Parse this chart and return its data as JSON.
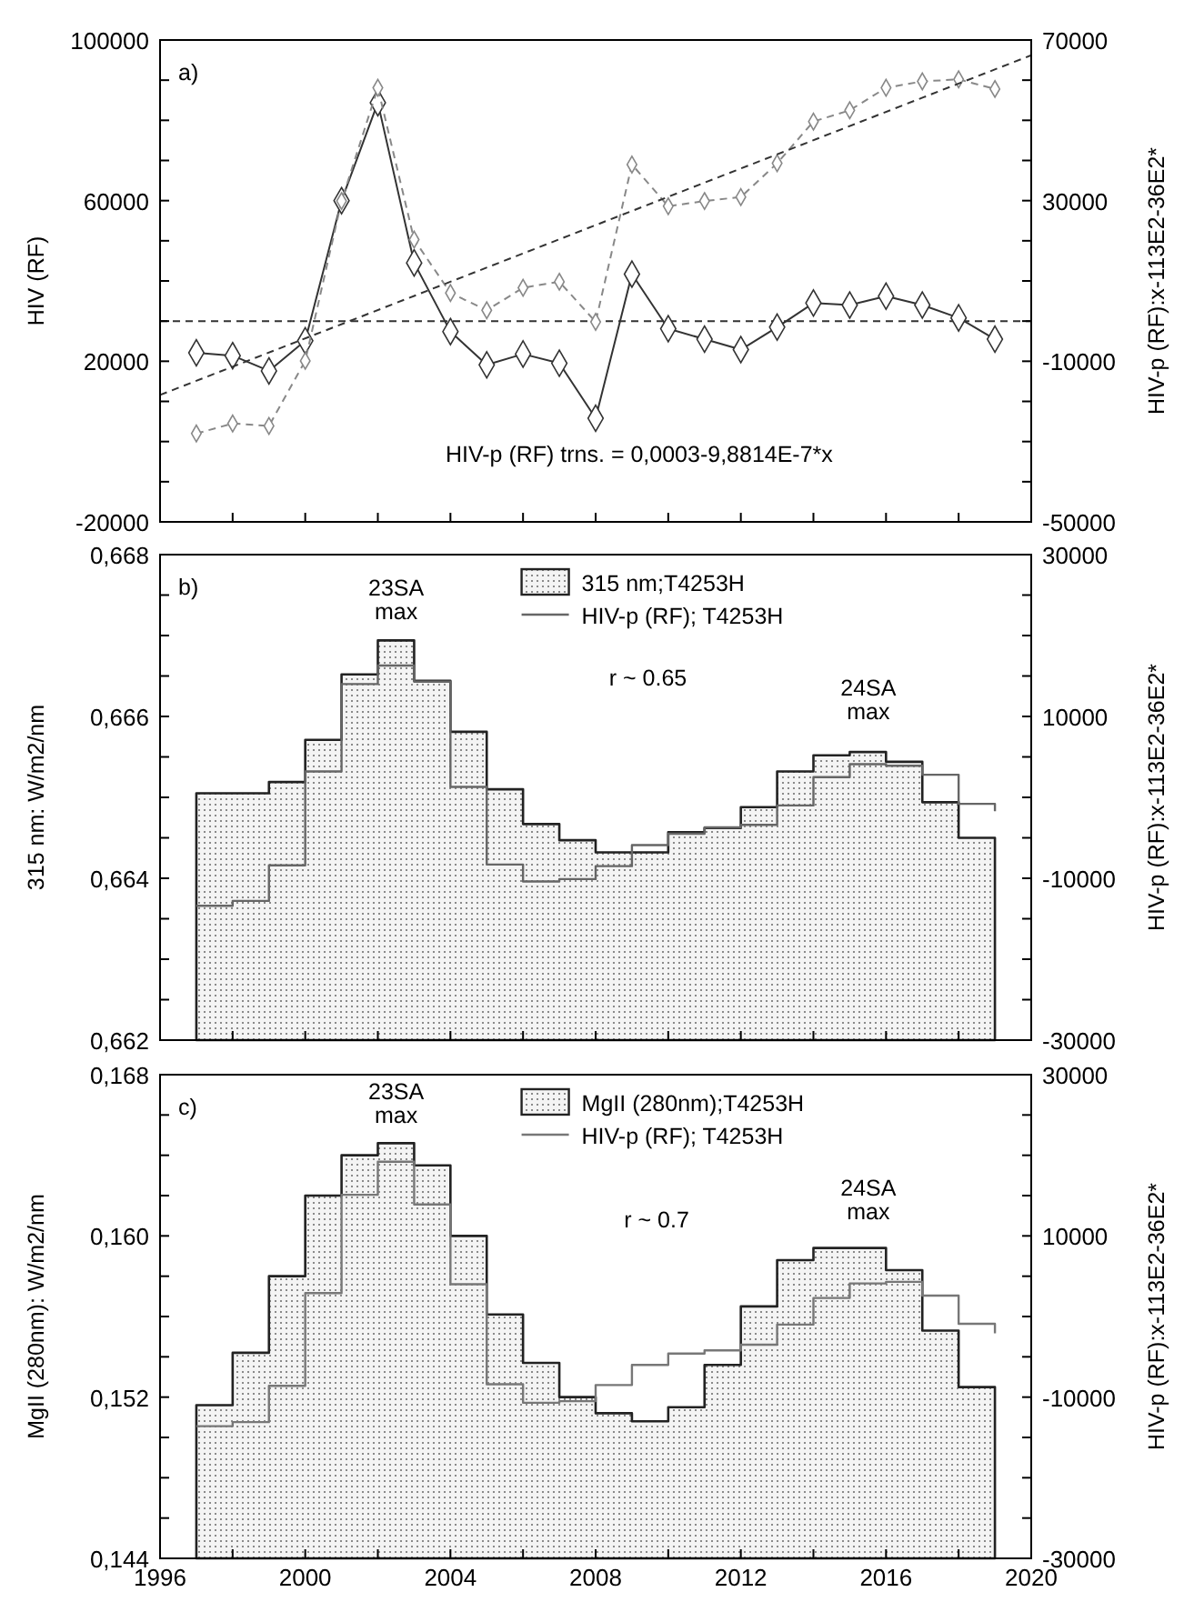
{
  "chart_data": [
    {
      "type": "line",
      "title": "a)",
      "ylabel": "HIV (RF)",
      "y2label": "HIV-p (RF):x-113E2-36E2*",
      "xlim": [
        1996,
        2020
      ],
      "xticks": [
        {
          "value": 1996,
          "label": null
        },
        {
          "value": 1998,
          "label": null
        },
        {
          "value": 2000,
          "label": null
        },
        {
          "value": 2002,
          "label": null
        },
        {
          "value": 2004,
          "label": null
        },
        {
          "value": 2006,
          "label": null
        },
        {
          "value": 2008,
          "label": null
        },
        {
          "value": 2010,
          "label": null
        },
        {
          "value": 2012,
          "label": null
        },
        {
          "value": 2014,
          "label": null
        },
        {
          "value": 2016,
          "label": null
        },
        {
          "value": 2018,
          "label": null
        },
        {
          "value": 2020,
          "label": null
        }
      ],
      "ylim": [
        -20000,
        100000
      ],
      "yticks": [
        -20000,
        {
          "value": -10000,
          "label": null
        },
        {
          "value": 0,
          "label": null
        },
        {
          "value": 10000,
          "label": null
        },
        20000,
        {
          "value": 30000,
          "label": null
        },
        {
          "value": 40000,
          "label": null
        },
        {
          "value": 50000,
          "label": null
        },
        60000,
        {
          "value": 70000,
          "label": null
        },
        {
          "value": 80000,
          "label": null
        },
        {
          "value": 90000,
          "label": null
        },
        100000
      ],
      "y2lim": [
        -50000,
        70000
      ],
      "y2ticks": [
        -50000,
        {
          "value": -40000,
          "label": null
        },
        {
          "value": -30000,
          "label": null
        },
        {
          "value": -20000,
          "label": null
        },
        -10000,
        {
          "value": 0,
          "label": null
        },
        {
          "value": 10000,
          "label": null
        },
        {
          "value": 20000,
          "label": null
        },
        30000,
        {
          "value": 40000,
          "label": null
        },
        {
          "value": 50000,
          "label": null
        },
        {
          "value": 60000,
          "label": null
        },
        70000
      ],
      "x": [
        1997,
        1998,
        1999,
        2000,
        2001,
        2002,
        2003,
        2004,
        2005,
        2006,
        2007,
        2008,
        2009,
        2010,
        2011,
        2012,
        2013,
        2014,
        2015,
        2016,
        2017,
        2018,
        2019
      ],
      "tick_labels": "y",
      "legend": false,
      "series": [
        {
          "color": "#333333",
          "marker": "diamond",
          "line_style": "solid",
          "values": [
            22100,
            21400,
            17600,
            25100,
            60000,
            84400,
            44500,
            27400,
            19100,
            21800,
            19500,
            5800,
            41700,
            28100,
            25500,
            22900,
            28500,
            34500,
            34000,
            36200,
            34000,
            30800,
            25500
          ]
        },
        {
          "color": "#888888",
          "marker": "diamond",
          "line_style": "dashed",
          "axis": "y2",
          "values": [
            -28000,
            -25500,
            -26100,
            -9900,
            29900,
            58100,
            20300,
            7000,
            2700,
            8300,
            9800,
            -200,
            39000,
            28600,
            29900,
            30900,
            39300,
            49700,
            52500,
            58100,
            59700,
            60200,
            57800
          ]
        },
        {
          "type": "line",
          "color": "#333333",
          "marker": "none",
          "line_style": "dashed",
          "axis": "y2",
          "x": [
            1996,
            2020
          ],
          "values": [
            -18400,
            66200
          ]
        }
      ],
      "ref_lines": [
        {
          "axis": "y2",
          "value": 0,
          "color": "#333333",
          "line_style": "dashed"
        }
      ],
      "annotations": [
        "HIV-p (RF) trns. = 0,0003-9,8814E-7*x"
      ]
    },
    {
      "type": "step",
      "title": "b)",
      "ylabel": "315 nm: W/m2/nm",
      "y2label": "HIV-p (RF):x-113E2-36E2*",
      "xlim": [
        1996,
        2020
      ],
      "xticks": [
        {
          "value": 1996,
          "label": null
        },
        {
          "value": 1998,
          "label": null
        },
        {
          "value": 2000,
          "label": null
        },
        {
          "value": 2002,
          "label": null
        },
        {
          "value": 2004,
          "label": null
        },
        {
          "value": 2006,
          "label": null
        },
        {
          "value": 2008,
          "label": null
        },
        {
          "value": 2010,
          "label": null
        },
        {
          "value": 2012,
          "label": null
        },
        {
          "value": 2014,
          "label": null
        },
        {
          "value": 2016,
          "label": null
        },
        {
          "value": 2018,
          "label": null
        },
        {
          "value": 2020,
          "label": null
        }
      ],
      "ylim": [
        0.662,
        0.668
      ],
      "yticks": [
        {
          "value": 0.662,
          "label": "0,662"
        },
        {
          "value": 0.6625,
          "label": null
        },
        {
          "value": 0.663,
          "label": null
        },
        {
          "value": 0.6635,
          "label": null
        },
        {
          "value": 0.664,
          "label": "0,664"
        },
        {
          "value": 0.6645,
          "label": null
        },
        {
          "value": 0.665,
          "label": null
        },
        {
          "value": 0.6655,
          "label": null
        },
        {
          "value": 0.666,
          "label": "0,666"
        },
        {
          "value": 0.6665,
          "label": null
        },
        {
          "value": 0.667,
          "label": null
        },
        {
          "value": 0.6675,
          "label": null
        },
        {
          "value": 0.668,
          "label": "0,668"
        }
      ],
      "y2lim": [
        -30000,
        30000
      ],
      "y2ticks": [
        -30000,
        {
          "value": -25000,
          "label": null
        },
        {
          "value": -20000,
          "label": null
        },
        {
          "value": -15000,
          "label": null
        },
        -10000,
        {
          "value": -5000,
          "label": null
        },
        {
          "value": 0,
          "label": null
        },
        {
          "value": 5000,
          "label": null
        },
        10000,
        {
          "value": 15000,
          "label": null
        },
        {
          "value": 20000,
          "label": null
        },
        {
          "value": 25000,
          "label": null
        },
        30000
      ],
      "x": [
        1997,
        1998,
        1999,
        2000,
        2001,
        2002,
        2003,
        2004,
        2005,
        2006,
        2007,
        2008,
        2009,
        2010,
        2011,
        2012,
        2013,
        2014,
        2015,
        2016,
        2017,
        2018,
        2019
      ],
      "tick_labels": "y",
      "legend": "top",
      "series": [
        {
          "name": "315 nm;T4253H",
          "type": "area",
          "color": "#222222",
          "values": [
            0.66505,
            0.66505,
            0.66519,
            0.66571,
            0.66652,
            0.66694,
            0.66644,
            0.66581,
            0.6651,
            0.66467,
            0.66447,
            0.66432,
            0.66432,
            0.66457,
            0.66462,
            0.66488,
            0.66532,
            0.66552,
            0.66556,
            0.66544,
            0.66494,
            0.6645,
            0.66443
          ]
        },
        {
          "name": "HIV-p (RF); T4253H",
          "color": "#666666",
          "axis": "y2",
          "values": [
            -13400,
            -12800,
            -8400,
            3200,
            14000,
            16300,
            14300,
            1300,
            -8300,
            -10400,
            -10100,
            -8500,
            -5900,
            -4500,
            -3700,
            -3400,
            -1000,
            2500,
            4100,
            3900,
            2800,
            -800,
            -1700
          ]
        }
      ],
      "annotations": [
        "23SA max",
        "24SA max",
        "r ~ 0.65"
      ]
    },
    {
      "type": "step",
      "title": "c)",
      "ylabel": "MgII (280nm): W/m2/nm",
      "y2label": "HIV-p (RF):x-113E2-36E2*",
      "xlim": [
        1996,
        2020
      ],
      "xticks": [
        {
          "value": 1996,
          "label": "1996"
        },
        {
          "value": 1998,
          "label": null
        },
        {
          "value": 2000,
          "label": "2000"
        },
        {
          "value": 2002,
          "label": null
        },
        {
          "value": 2004,
          "label": "2004"
        },
        {
          "value": 2006,
          "label": null
        },
        {
          "value": 2008,
          "label": "2008"
        },
        {
          "value": 2010,
          "label": null
        },
        {
          "value": 2012,
          "label": "2012"
        },
        {
          "value": 2014,
          "label": null
        },
        {
          "value": 2016,
          "label": "2016"
        },
        {
          "value": 2018,
          "label": null
        },
        {
          "value": 2020,
          "label": "2020"
        }
      ],
      "ylim": [
        0.144,
        0.168
      ],
      "yticks": [
        {
          "value": 0.144,
          "label": "0,144"
        },
        {
          "value": 0.146,
          "label": null
        },
        {
          "value": 0.148,
          "label": null
        },
        {
          "value": 0.15,
          "label": null
        },
        {
          "value": 0.152,
          "label": "0,152"
        },
        {
          "value": 0.154,
          "label": null
        },
        {
          "value": 0.156,
          "label": null
        },
        {
          "value": 0.158,
          "label": null
        },
        {
          "value": 0.16,
          "label": "0,160"
        },
        {
          "value": 0.162,
          "label": null
        },
        {
          "value": 0.164,
          "label": null
        },
        {
          "value": 0.166,
          "label": null
        },
        {
          "value": 0.168,
          "label": "0,168"
        }
      ],
      "y2lim": [
        -30000,
        30000
      ],
      "y2ticks": [
        -30000,
        {
          "value": -25000,
          "label": null
        },
        {
          "value": -20000,
          "label": null
        },
        {
          "value": -15000,
          "label": null
        },
        -10000,
        {
          "value": -5000,
          "label": null
        },
        {
          "value": 0,
          "label": null
        },
        {
          "value": 5000,
          "label": null
        },
        10000,
        {
          "value": 15000,
          "label": null
        },
        {
          "value": 20000,
          "label": null
        },
        {
          "value": 25000,
          "label": null
        },
        30000
      ],
      "x": [
        1997,
        1998,
        1999,
        2000,
        2001,
        2002,
        2003,
        2004,
        2005,
        2006,
        2007,
        2008,
        2009,
        2010,
        2011,
        2012,
        2013,
        2014,
        2015,
        2016,
        2017,
        2018,
        2019
      ],
      "legend": "top",
      "series": [
        {
          "name": "MgII (280nm);T4253H",
          "type": "area",
          "color": "#222222",
          "values": [
            0.1516,
            0.1542,
            0.158,
            0.162,
            0.164,
            0.1646,
            0.1635,
            0.16,
            0.1561,
            0.1537,
            0.152,
            0.1512,
            0.1508,
            0.1515,
            0.1536,
            0.1565,
            0.1588,
            0.1594,
            0.1594,
            0.1583,
            0.1553,
            0.1525,
            0.1516
          ]
        },
        {
          "name": "HIV-p (RF); T4253H",
          "color": "#777777",
          "axis": "y2",
          "values": [
            -13600,
            -13100,
            -8600,
            2900,
            15100,
            19200,
            13900,
            4000,
            -8400,
            -10700,
            -10500,
            -8500,
            -6000,
            -4600,
            -4200,
            -3500,
            -1000,
            2300,
            4100,
            4300,
            2600,
            -900,
            -2100
          ]
        }
      ],
      "annotations": [
        "23SA max",
        "24SA max",
        "r ~ 0.7"
      ]
    }
  ]
}
